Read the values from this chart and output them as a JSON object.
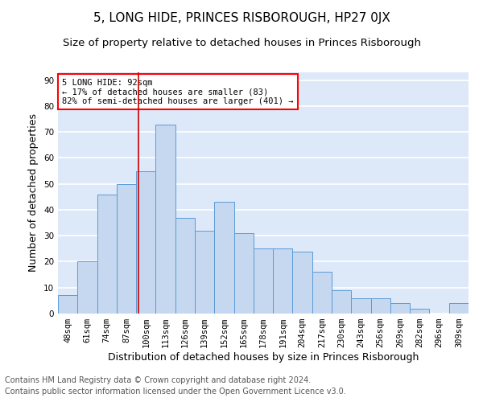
{
  "title": "5, LONG HIDE, PRINCES RISBOROUGH, HP27 0JX",
  "subtitle": "Size of property relative to detached houses in Princes Risborough",
  "xlabel": "Distribution of detached houses by size in Princes Risborough",
  "ylabel": "Number of detached properties",
  "categories": [
    "48sqm",
    "61sqm",
    "74sqm",
    "87sqm",
    "100sqm",
    "113sqm",
    "126sqm",
    "139sqm",
    "152sqm",
    "165sqm",
    "178sqm",
    "191sqm",
    "204sqm",
    "217sqm",
    "230sqm",
    "243sqm",
    "256sqm",
    "269sqm",
    "282sqm",
    "296sqm",
    "309sqm"
  ],
  "values": [
    7,
    20,
    46,
    50,
    55,
    73,
    37,
    32,
    43,
    31,
    25,
    25,
    24,
    16,
    9,
    6,
    6,
    4,
    2,
    0,
    4
  ],
  "bar_color": "#c5d8f0",
  "bar_edge_color": "#5b9bd5",
  "red_line_x": 3.62,
  "annotation_text": "5 LONG HIDE: 92sqm\n← 17% of detached houses are smaller (83)\n82% of semi-detached houses are larger (401) →",
  "annotation_box_color": "white",
  "annotation_box_edge_color": "red",
  "red_line_color": "#cc0000",
  "ylim": [
    0,
    93
  ],
  "yticks": [
    0,
    10,
    20,
    30,
    40,
    50,
    60,
    70,
    80,
    90
  ],
  "background_color": "#dde8f8",
  "grid_color": "#ffffff",
  "footer1": "Contains HM Land Registry data © Crown copyright and database right 2024.",
  "footer2": "Contains public sector information licensed under the Open Government Licence v3.0.",
  "title_fontsize": 11,
  "subtitle_fontsize": 9.5,
  "xlabel_fontsize": 9,
  "ylabel_fontsize": 9,
  "tick_fontsize": 7.5,
  "footer_fontsize": 7
}
